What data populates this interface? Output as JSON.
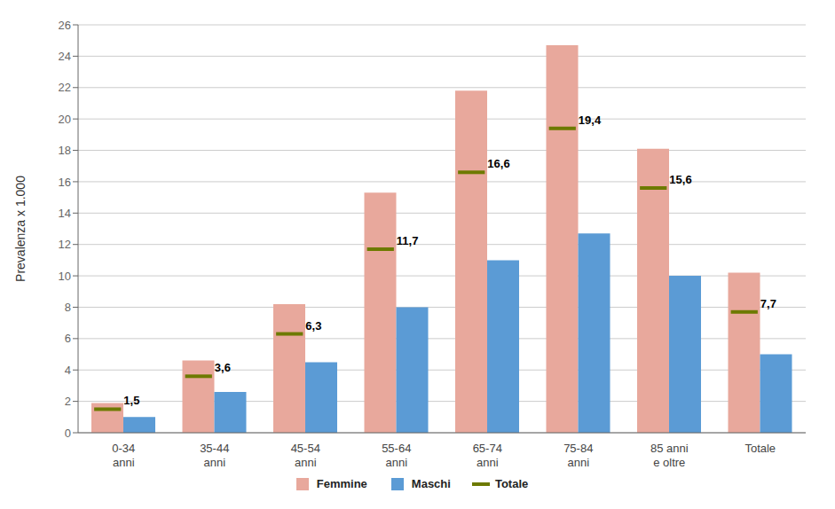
{
  "chart_data": {
    "type": "bar",
    "categories": [
      "0-34\nanni",
      "35-44\nanni",
      "45-54\nanni",
      "55-64\nanni",
      "65-74\nanni",
      "75-84\nanni",
      "85 anni\ne oltre",
      "Totale"
    ],
    "series": [
      {
        "name": "Femmine",
        "type": "bar",
        "color": "#e8a89c",
        "values": [
          1.9,
          4.6,
          8.2,
          15.3,
          21.8,
          24.7,
          18.1,
          10.2
        ]
      },
      {
        "name": "Maschi",
        "type": "bar",
        "color": "#5b9bd5",
        "values": [
          1.0,
          2.6,
          4.5,
          8.0,
          11.0,
          12.7,
          10.0,
          5.0
        ]
      },
      {
        "name": "Totale",
        "type": "scatter",
        "marker": "dash",
        "color": "#6d7a00",
        "values": [
          1.5,
          3.6,
          6.3,
          11.7,
          16.6,
          19.4,
          15.6,
          7.7
        ],
        "value_labels": [
          "1,5",
          "3,6",
          "6,3",
          "11,7",
          "16,6",
          "19,4",
          "15,6",
          "7,7"
        ],
        "data_labels": true
      }
    ],
    "ylabel": "Prevalenza x 1.000",
    "ylim": [
      0,
      26
    ],
    "yticks": [
      0,
      2,
      4,
      6,
      8,
      10,
      12,
      14,
      16,
      18,
      20,
      22,
      24,
      26
    ],
    "grid": true,
    "legend": "bottom"
  }
}
